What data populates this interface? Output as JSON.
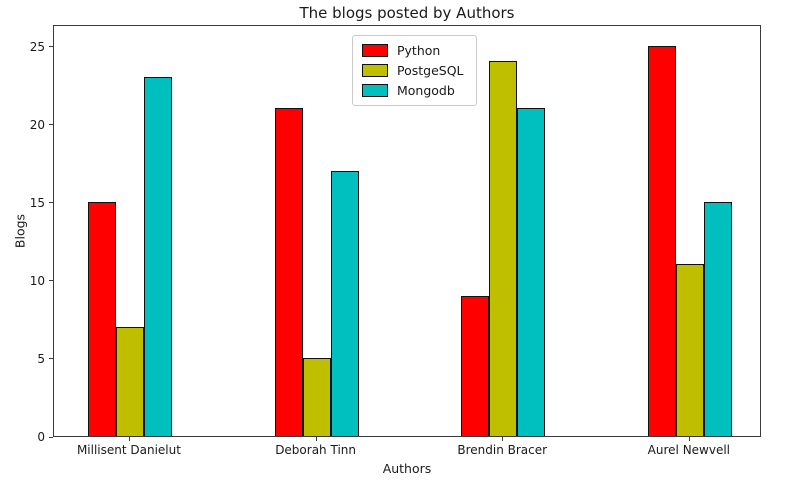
{
  "title": "The blogs posted by Authors",
  "chart_data": {
    "type": "bar",
    "title": "The blogs posted by Authors",
    "xlabel": "Authors",
    "ylabel": "Blogs",
    "categories": [
      "Millisent Danielut",
      "Deborah Tinn",
      "Brendin Bracer",
      "Aurel Newvell"
    ],
    "series": [
      {
        "name": "Python",
        "color": "#ff0000",
        "values": [
          15,
          21,
          9,
          25
        ]
      },
      {
        "name": "PostgeSQL",
        "color": "#bfbf00",
        "values": [
          7,
          5,
          24,
          11
        ]
      },
      {
        "name": "Mongodb",
        "color": "#00bfbf",
        "values": [
          23,
          17,
          21,
          15
        ]
      }
    ],
    "yticks": [
      0,
      5,
      10,
      15,
      20,
      25
    ],
    "ylim": [
      0,
      26.4
    ],
    "grid": false,
    "legend_position": "upper center",
    "bar_edge_color": "#111111"
  }
}
